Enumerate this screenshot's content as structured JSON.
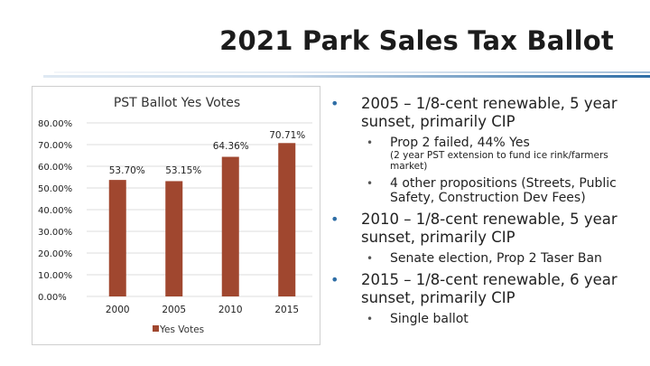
{
  "slide": {
    "title": "2021 Park Sales Tax Ballot"
  },
  "chart_data": {
    "type": "bar",
    "title": "PST Ballot Yes Votes",
    "categories": [
      "2000",
      "2005",
      "2010",
      "2015"
    ],
    "series": [
      {
        "name": "Yes Votes",
        "values": [
          53.7,
          53.15,
          64.36,
          70.71
        ],
        "color": "#a0472f"
      }
    ],
    "data_labels": [
      "53.70%",
      "53.15%",
      "64.36%",
      "70.71%"
    ],
    "y_ticks": [
      "0.00%",
      "10.00%",
      "20.00%",
      "30.00%",
      "40.00%",
      "50.00%",
      "60.00%",
      "70.00%",
      "80.00%"
    ],
    "ylim": [
      0,
      80
    ],
    "grid": true,
    "legend": "bottom",
    "legend_label": "Yes Votes",
    "xlabel": "",
    "ylabel": ""
  },
  "bullets": [
    {
      "text": "2005 – 1/8-cent renewable, 5 year sunset, primarily CIP",
      "subs": [
        {
          "text": "Prop 2 failed, 44% Yes"
        },
        {
          "note": "(2 year PST extension to fund ice rink/farmers market)"
        },
        {
          "text": "4 other propositions (Streets, Public Safety, Construction Dev Fees)"
        }
      ]
    },
    {
      "text": "2010 – 1/8-cent renewable, 5 year sunset, primarily CIP",
      "subs": [
        {
          "text": "Senate election, Prop 2 Taser Ban"
        }
      ]
    },
    {
      "text": "2015 – 1/8-cent renewable, 6 year sunset, primarily CIP",
      "subs": [
        {
          "text": "Single ballot"
        }
      ]
    }
  ],
  "icons": {
    "bullet": "•"
  },
  "colors": {
    "accent": "#2f6ea6",
    "bar": "#a0472f"
  }
}
